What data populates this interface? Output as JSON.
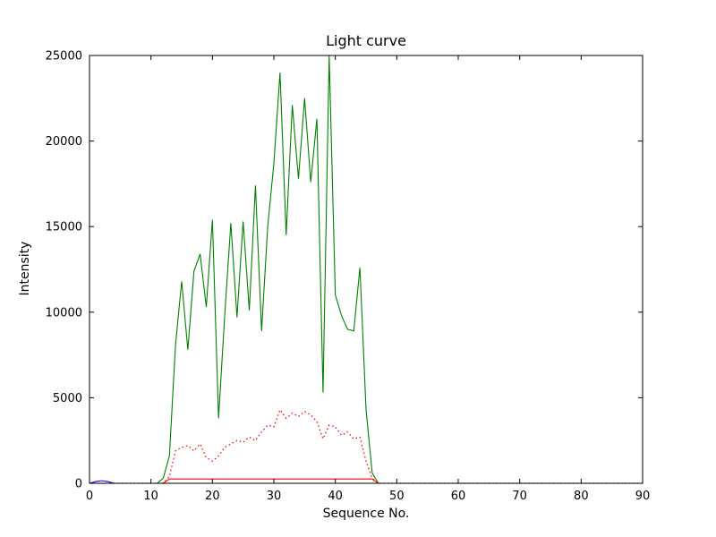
{
  "chart_data": {
    "type": "line",
    "title": "Light curve",
    "xlabel": "Sequence No.",
    "ylabel": "Intensity",
    "xlim": [
      0,
      90
    ],
    "ylim": [
      0,
      25000
    ],
    "x_ticks": [
      0,
      10,
      20,
      30,
      40,
      50,
      60,
      70,
      80,
      90
    ],
    "y_ticks": [
      0,
      5000,
      10000,
      15000,
      20000,
      25000
    ],
    "grid": false,
    "legend": "none",
    "background_color": "#ffffff",
    "axis_color": "#000000",
    "x": [
      0,
      1,
      2,
      3,
      4,
      5,
      6,
      7,
      8,
      9,
      10,
      11,
      12,
      13,
      14,
      15,
      16,
      17,
      18,
      19,
      20,
      21,
      22,
      23,
      24,
      25,
      26,
      27,
      28,
      29,
      30,
      31,
      32,
      33,
      34,
      35,
      36,
      37,
      38,
      39,
      40,
      41,
      42,
      43,
      44,
      45,
      46,
      47,
      48,
      49,
      50,
      51,
      52,
      53,
      54,
      55,
      56,
      57,
      58,
      59,
      60,
      61,
      62,
      63,
      64,
      65,
      66,
      67,
      68,
      69,
      70,
      71,
      72,
      73,
      74,
      75,
      76,
      77,
      78,
      79,
      80,
      81,
      82,
      83,
      84,
      85,
      86,
      87,
      88,
      89,
      90
    ],
    "series": [
      {
        "name": "green-intensity-curve",
        "color": "#008000",
        "style": "solid",
        "values": [
          0,
          0,
          0,
          0,
          0,
          0,
          0,
          0,
          0,
          0,
          0,
          0,
          300,
          1600,
          8100,
          11800,
          7800,
          12400,
          13400,
          10300,
          15400,
          3800,
          9800,
          15200,
          9700,
          15300,
          10100,
          17400,
          8900,
          15000,
          18700,
          24000,
          14500,
          22100,
          17800,
          22500,
          17600,
          21300,
          5300,
          25600,
          11000,
          9800,
          9000,
          8900,
          12600,
          4300,
          600,
          0,
          0,
          0,
          0,
          0,
          0,
          0,
          0,
          0,
          0,
          0,
          0,
          0,
          0,
          0,
          0,
          0,
          0,
          0,
          0,
          0,
          0,
          0,
          0,
          0,
          0,
          0,
          0,
          0,
          0,
          0,
          0,
          0,
          0,
          0,
          0,
          0,
          0,
          0,
          0,
          0,
          0,
          0,
          0
        ]
      },
      {
        "name": "red-dotted-curve",
        "color": "#ff0000",
        "style": "dotted",
        "values": [
          0,
          0,
          0,
          0,
          0,
          0,
          0,
          0,
          0,
          0,
          0,
          0,
          0,
          400,
          1900,
          2100,
          2200,
          1900,
          2300,
          1500,
          1300,
          1600,
          2100,
          2300,
          2500,
          2400,
          2700,
          2500,
          3000,
          3400,
          3300,
          4300,
          3800,
          4100,
          3900,
          4200,
          4000,
          3600,
          2600,
          3400,
          3300,
          2800,
          3000,
          2600,
          2700,
          1300,
          300,
          0,
          0,
          0,
          0,
          0,
          0,
          0,
          0,
          0,
          0,
          0,
          0,
          0,
          0,
          0,
          0,
          0,
          0,
          0,
          0,
          0,
          0,
          0,
          0,
          0,
          0,
          0,
          0,
          0,
          0,
          0,
          0,
          0,
          0,
          0,
          0,
          0,
          0,
          0,
          0,
          0,
          0,
          0,
          0
        ]
      },
      {
        "name": "red-baseline-curve",
        "color": "#ff0000",
        "style": "solid",
        "values": [
          0,
          0,
          0,
          0,
          0,
          0,
          0,
          0,
          0,
          0,
          0,
          0,
          0,
          250,
          250,
          250,
          250,
          250,
          250,
          250,
          250,
          250,
          250,
          250,
          250,
          250,
          250,
          250,
          250,
          250,
          250,
          250,
          250,
          250,
          250,
          250,
          250,
          250,
          250,
          250,
          250,
          250,
          250,
          250,
          250,
          250,
          250,
          0,
          0,
          0,
          0,
          0,
          0,
          0,
          0,
          0,
          0,
          0,
          0,
          0,
          0,
          0,
          0,
          0,
          0,
          0,
          0,
          0,
          0,
          0,
          0,
          0,
          0,
          0,
          0,
          0,
          0,
          0,
          0,
          0,
          0,
          0,
          0,
          0,
          0,
          0,
          0,
          0,
          0,
          0,
          0
        ]
      },
      {
        "name": "blue-blip-curve",
        "color": "#0000ff",
        "style": "solid",
        "values": [
          0,
          100,
          150,
          100,
          0,
          0,
          0,
          0,
          0,
          0,
          0,
          0,
          0,
          0,
          0,
          0,
          0,
          0,
          0,
          0,
          0,
          0,
          0,
          0,
          0,
          0,
          0,
          0,
          0,
          0,
          0,
          0,
          0,
          0,
          0,
          0,
          0,
          0,
          0,
          0,
          0,
          0,
          0,
          0,
          0,
          0,
          0,
          0,
          0,
          0,
          0,
          0,
          0,
          0,
          0,
          0,
          0,
          0,
          0,
          0,
          0,
          0,
          0,
          0,
          0,
          0,
          0,
          0,
          0,
          0,
          0,
          0,
          0,
          0,
          0,
          0,
          0,
          0,
          0,
          0,
          0,
          0,
          0,
          0,
          0,
          0,
          0,
          0,
          0,
          0,
          0
        ]
      }
    ]
  }
}
